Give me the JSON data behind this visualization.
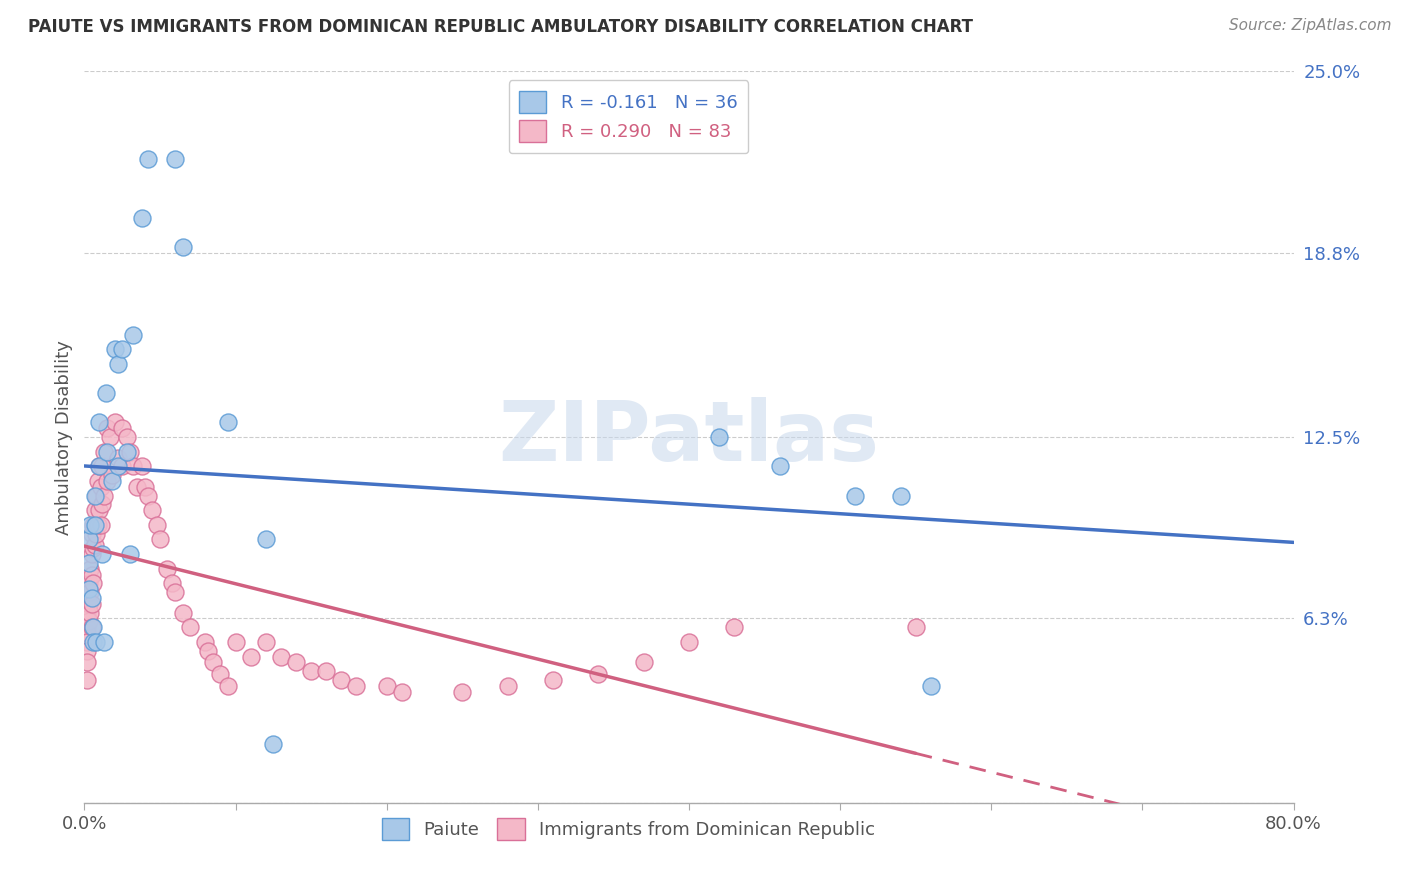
{
  "title": "PAIUTE VS IMMIGRANTS FROM DOMINICAN REPUBLIC AMBULATORY DISABILITY CORRELATION CHART",
  "source": "Source: ZipAtlas.com",
  "ylabel": "Ambulatory Disability",
  "xlim": [
    0.0,
    0.8
  ],
  "ylim": [
    0.0,
    0.25
  ],
  "ytick_vals": [
    0.0,
    0.063,
    0.125,
    0.188,
    0.25
  ],
  "ytick_labels": [
    "",
    "6.3%",
    "12.5%",
    "18.8%",
    "25.0%"
  ],
  "xtick_vals": [
    0.0,
    0.1,
    0.2,
    0.3,
    0.4,
    0.5,
    0.6,
    0.7,
    0.8
  ],
  "xtick_labels": [
    "0.0%",
    "",
    "",
    "",
    "",
    "",
    "",
    "",
    "80.0%"
  ],
  "paiute_color": "#a8c8e8",
  "paiute_edge_color": "#5b9bd5",
  "dr_color": "#f4b8c8",
  "dr_edge_color": "#d97098",
  "paiute_R": -0.161,
  "paiute_N": 36,
  "dr_R": 0.29,
  "dr_N": 83,
  "trend_paiute_color": "#4472c4",
  "trend_dr_color": "#d06080",
  "watermark": "ZIPatlas",
  "legend_label_paiute": "Paiute",
  "legend_label_dr": "Immigrants from Dominican Republic",
  "paiute_x": [
    0.003,
    0.003,
    0.003,
    0.004,
    0.005,
    0.006,
    0.006,
    0.007,
    0.007,
    0.008,
    0.01,
    0.01,
    0.012,
    0.013,
    0.014,
    0.015,
    0.018,
    0.02,
    0.022,
    0.022,
    0.025,
    0.028,
    0.03,
    0.032,
    0.038,
    0.042,
    0.06,
    0.065,
    0.095,
    0.12,
    0.125,
    0.42,
    0.46,
    0.51,
    0.54,
    0.56
  ],
  "paiute_y": [
    0.073,
    0.082,
    0.09,
    0.095,
    0.07,
    0.06,
    0.055,
    0.105,
    0.095,
    0.055,
    0.13,
    0.115,
    0.085,
    0.055,
    0.14,
    0.12,
    0.11,
    0.155,
    0.15,
    0.115,
    0.155,
    0.12,
    0.085,
    0.16,
    0.2,
    0.22,
    0.22,
    0.19,
    0.13,
    0.09,
    0.02,
    0.125,
    0.115,
    0.105,
    0.105,
    0.04
  ],
  "dr_x": [
    0.002,
    0.002,
    0.002,
    0.002,
    0.002,
    0.002,
    0.002,
    0.002,
    0.003,
    0.003,
    0.003,
    0.004,
    0.004,
    0.004,
    0.005,
    0.005,
    0.005,
    0.005,
    0.005,
    0.006,
    0.006,
    0.006,
    0.007,
    0.007,
    0.008,
    0.008,
    0.009,
    0.009,
    0.01,
    0.01,
    0.011,
    0.011,
    0.012,
    0.012,
    0.013,
    0.013,
    0.015,
    0.015,
    0.017,
    0.018,
    0.02,
    0.022,
    0.025,
    0.025,
    0.028,
    0.03,
    0.032,
    0.035,
    0.038,
    0.04,
    0.042,
    0.045,
    0.048,
    0.05,
    0.055,
    0.058,
    0.06,
    0.065,
    0.07,
    0.08,
    0.082,
    0.085,
    0.09,
    0.095,
    0.1,
    0.11,
    0.12,
    0.13,
    0.14,
    0.15,
    0.16,
    0.17,
    0.18,
    0.2,
    0.21,
    0.25,
    0.28,
    0.31,
    0.34,
    0.37,
    0.4,
    0.43,
    0.55
  ],
  "dr_y": [
    0.072,
    0.065,
    0.06,
    0.058,
    0.055,
    0.052,
    0.048,
    0.042,
    0.075,
    0.068,
    0.062,
    0.08,
    0.072,
    0.065,
    0.092,
    0.085,
    0.078,
    0.068,
    0.06,
    0.095,
    0.087,
    0.075,
    0.1,
    0.088,
    0.105,
    0.092,
    0.11,
    0.095,
    0.115,
    0.1,
    0.108,
    0.095,
    0.115,
    0.102,
    0.12,
    0.105,
    0.128,
    0.11,
    0.125,
    0.112,
    0.13,
    0.118,
    0.128,
    0.115,
    0.125,
    0.12,
    0.115,
    0.108,
    0.115,
    0.108,
    0.105,
    0.1,
    0.095,
    0.09,
    0.08,
    0.075,
    0.072,
    0.065,
    0.06,
    0.055,
    0.052,
    0.048,
    0.044,
    0.04,
    0.055,
    0.05,
    0.055,
    0.05,
    0.048,
    0.045,
    0.045,
    0.042,
    0.04,
    0.04,
    0.038,
    0.038,
    0.04,
    0.042,
    0.044,
    0.048,
    0.055,
    0.06,
    0.06
  ]
}
